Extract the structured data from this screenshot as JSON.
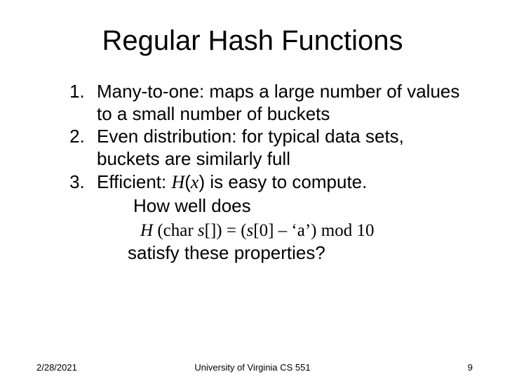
{
  "title": "Regular Hash Functions",
  "items": [
    "Many-to-one: maps a large number of values to a small number of buckets",
    "Even distribution: for typical data sets, buckets are similarly full",
    "Efficient: "
  ],
  "item3_hx": "H",
  "item3_paren_open": "(",
  "item3_x": "x",
  "item3_paren_close": ")",
  "item3_tail": " is easy to compute.",
  "question1": "How well does",
  "formula_H": "H",
  "formula_open": " (char ",
  "formula_s": "s",
  "formula_brackets": "[]) = (",
  "formula_s2": "s",
  "formula_rest": "[0] – ‘a’) mod 10",
  "question2": "satisfy these properties?",
  "footer": {
    "date": "2/28/2021",
    "center": "University of Virginia CS 551",
    "page": "9"
  },
  "colors": {
    "bg": "#ffffff",
    "text": "#000000"
  }
}
